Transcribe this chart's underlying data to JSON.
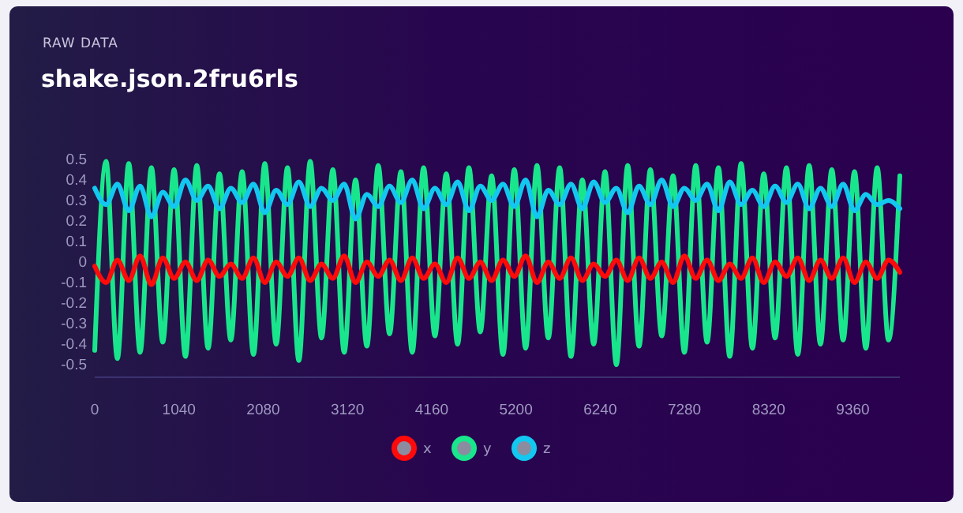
{
  "chart_data": {
    "type": "line",
    "subtitle": "RAW DATA",
    "title": "shake.json.2fru6rls",
    "x": [
      0,
      140,
      280,
      420,
      560,
      700,
      840,
      980,
      1120,
      1260,
      1400,
      1540,
      1680,
      1820,
      1960,
      2100,
      2240,
      2380,
      2520,
      2660,
      2800,
      2940,
      3080,
      3220,
      3360,
      3500,
      3640,
      3780,
      3920,
      4060,
      4200,
      4340,
      4480,
      4620,
      4760,
      4900,
      5040,
      5180,
      5320,
      5460,
      5600,
      5740,
      5880,
      6020,
      6160,
      6300,
      6440,
      6580,
      6720,
      6860,
      7000,
      7140,
      7280,
      7420,
      7560,
      7700,
      7840,
      7980,
      8120,
      8260,
      8400,
      8540,
      8680,
      8820,
      8960,
      9100,
      9240,
      9380,
      9520,
      9660,
      9800,
      9940
    ],
    "series": [
      {
        "name": "x",
        "color": "#ff0a0a",
        "values": [
          -0.02,
          -0.1,
          0.01,
          -0.09,
          0.03,
          -0.11,
          0.02,
          -0.08,
          0.0,
          -0.09,
          0.01,
          -0.07,
          -0.01,
          -0.08,
          0.02,
          -0.1,
          0.0,
          -0.07,
          0.02,
          -0.09,
          -0.01,
          -0.08,
          0.03,
          -0.1,
          0.0,
          -0.07,
          0.01,
          -0.09,
          0.02,
          -0.08,
          -0.01,
          -0.1,
          0.02,
          -0.08,
          0.0,
          -0.09,
          0.01,
          -0.07,
          0.03,
          -0.1,
          0.0,
          -0.08,
          0.02,
          -0.09,
          -0.01,
          -0.07,
          0.01,
          -0.09,
          0.02,
          -0.08,
          0.0,
          -0.1,
          0.03,
          -0.08,
          0.01,
          -0.09,
          -0.01,
          -0.08,
          0.02,
          -0.1,
          0.0,
          -0.07,
          0.02,
          -0.09,
          0.01,
          -0.08,
          0.02,
          -0.1,
          0.0,
          -0.08,
          0.01,
          -0.05
        ]
      },
      {
        "name": "y",
        "color": "#19e68c",
        "values": [
          -0.43,
          0.49,
          -0.47,
          0.48,
          -0.44,
          0.46,
          -0.39,
          0.45,
          -0.46,
          0.47,
          -0.42,
          0.43,
          -0.38,
          0.44,
          -0.45,
          0.48,
          -0.4,
          0.46,
          -0.48,
          0.49,
          -0.37,
          0.45,
          -0.44,
          0.4,
          -0.41,
          0.47,
          -0.35,
          0.44,
          -0.44,
          0.46,
          -0.36,
          0.43,
          -0.4,
          0.46,
          -0.34,
          0.42,
          -0.45,
          0.45,
          -0.42,
          0.47,
          -0.37,
          0.46,
          -0.46,
          0.4,
          -0.4,
          0.44,
          -0.5,
          0.47,
          -0.41,
          0.45,
          -0.36,
          0.42,
          -0.44,
          0.47,
          -0.39,
          0.46,
          -0.46,
          0.48,
          -0.42,
          0.43,
          -0.37,
          0.46,
          -0.45,
          0.47,
          -0.4,
          0.45,
          -0.38,
          0.44,
          -0.42,
          0.46,
          -0.38,
          0.42
        ]
      },
      {
        "name": "z",
        "color": "#12c8f0",
        "values": [
          0.36,
          0.28,
          0.38,
          0.25,
          0.37,
          0.22,
          0.34,
          0.27,
          0.4,
          0.3,
          0.37,
          0.26,
          0.36,
          0.29,
          0.38,
          0.24,
          0.35,
          0.28,
          0.39,
          0.27,
          0.36,
          0.3,
          0.38,
          0.21,
          0.33,
          0.27,
          0.37,
          0.29,
          0.4,
          0.26,
          0.36,
          0.28,
          0.39,
          0.25,
          0.37,
          0.3,
          0.38,
          0.27,
          0.4,
          0.22,
          0.35,
          0.28,
          0.38,
          0.26,
          0.39,
          0.29,
          0.36,
          0.24,
          0.37,
          0.28,
          0.4,
          0.27,
          0.36,
          0.3,
          0.38,
          0.25,
          0.39,
          0.28,
          0.35,
          0.27,
          0.37,
          0.29,
          0.38,
          0.26,
          0.36,
          0.27,
          0.38,
          0.25,
          0.33,
          0.28,
          0.3,
          0.26
        ]
      }
    ],
    "xlim": [
      0,
      9940
    ],
    "xticks": [
      0,
      1040,
      2080,
      3120,
      4160,
      5200,
      6240,
      7280,
      8320,
      9360
    ],
    "ylim": [
      -0.5,
      0.5
    ],
    "yticks": [
      -0.5,
      -0.4,
      -0.3,
      -0.2,
      -0.1,
      0,
      0.1,
      0.2,
      0.3,
      0.4,
      0.5
    ],
    "grid": false,
    "legend": "bottom",
    "marker": "none",
    "line_style": "solid"
  }
}
